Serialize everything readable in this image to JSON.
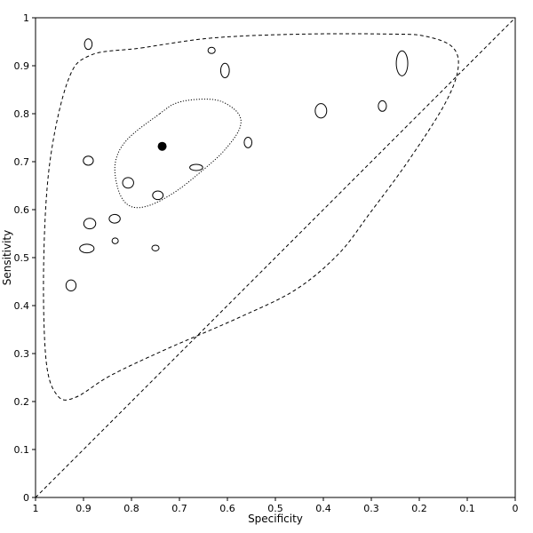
{
  "chart_data": {
    "type": "scatter",
    "title": "",
    "xlabel": "Specificity",
    "ylabel": "Sensitivity",
    "x_reversed": true,
    "xlim": [
      1,
      0
    ],
    "ylim": [
      0,
      1
    ],
    "x_ticks": [
      1,
      0.9,
      0.8,
      0.7,
      0.6,
      0.5,
      0.4,
      0.3,
      0.2,
      0.1,
      0
    ],
    "y_ticks": [
      0,
      0.1,
      0.2,
      0.3,
      0.4,
      0.5,
      0.6,
      0.7,
      0.8,
      0.9,
      1
    ],
    "x_tick_labels": [
      "1",
      "0.9",
      "0.8",
      "0.7",
      "0.6",
      "0.5",
      "0.4",
      "0.3",
      "0.2",
      "0.1",
      "0"
    ],
    "y_tick_labels": [
      "0",
      "0.1",
      "0.2",
      "0.3",
      "0.4",
      "0.5",
      "0.6",
      "0.7",
      "0.8",
      "0.9",
      "1"
    ],
    "grid": false,
    "legend": "none",
    "reference_line": {
      "from": [
        1,
        0
      ],
      "to": [
        0,
        1
      ],
      "style": "dashed"
    },
    "studies": [
      {
        "spec": 0.89,
        "sens": 0.945,
        "rx": 0.008,
        "ry": 0.011
      },
      {
        "spec": 0.633,
        "sens": 0.932,
        "rx": 0.0075,
        "ry": 0.0065
      },
      {
        "spec": 0.605,
        "sens": 0.89,
        "rx": 0.009,
        "ry": 0.015
      },
      {
        "spec": 0.236,
        "sens": 0.905,
        "rx": 0.012,
        "ry": 0.026
      },
      {
        "spec": 0.405,
        "sens": 0.806,
        "rx": 0.012,
        "ry": 0.015
      },
      {
        "spec": 0.277,
        "sens": 0.816,
        "rx": 0.0085,
        "ry": 0.011
      },
      {
        "spec": 0.557,
        "sens": 0.74,
        "rx": 0.008,
        "ry": 0.011
      },
      {
        "spec": 0.89,
        "sens": 0.702,
        "rx": 0.0105,
        "ry": 0.0095
      },
      {
        "spec": 0.665,
        "sens": 0.688,
        "rx": 0.0135,
        "ry": 0.0065
      },
      {
        "spec": 0.807,
        "sens": 0.656,
        "rx": 0.0115,
        "ry": 0.011
      },
      {
        "spec": 0.745,
        "sens": 0.63,
        "rx": 0.011,
        "ry": 0.009
      },
      {
        "spec": 0.835,
        "sens": 0.581,
        "rx": 0.0115,
        "ry": 0.009
      },
      {
        "spec": 0.887,
        "sens": 0.571,
        "rx": 0.0125,
        "ry": 0.011
      },
      {
        "spec": 0.834,
        "sens": 0.535,
        "rx": 0.0065,
        "ry": 0.006
      },
      {
        "spec": 0.893,
        "sens": 0.519,
        "rx": 0.015,
        "ry": 0.009
      },
      {
        "spec": 0.75,
        "sens": 0.52,
        "rx": 0.0075,
        "ry": 0.006
      },
      {
        "spec": 0.926,
        "sens": 0.442,
        "rx": 0.0105,
        "ry": 0.0115
      }
    ],
    "summary_point": {
      "spec": 0.736,
      "sens": 0.732
    },
    "confidence_region": {
      "style": "dotted",
      "points": [
        [
          0.741,
          0.8
        ],
        [
          0.707,
          0.822
        ],
        [
          0.66,
          0.83
        ],
        [
          0.614,
          0.826
        ],
        [
          0.577,
          0.8
        ],
        [
          0.575,
          0.768
        ],
        [
          0.606,
          0.724
        ],
        [
          0.647,
          0.686
        ],
        [
          0.706,
          0.639
        ],
        [
          0.762,
          0.609
        ],
        [
          0.802,
          0.607
        ],
        [
          0.826,
          0.637
        ],
        [
          0.834,
          0.696
        ],
        [
          0.809,
          0.746
        ]
      ]
    },
    "prediction_region": {
      "style": "dashed",
      "points": [
        [
          0.78,
          0.937
        ],
        [
          0.63,
          0.958
        ],
        [
          0.44,
          0.966
        ],
        [
          0.26,
          0.966
        ],
        [
          0.19,
          0.962
        ],
        [
          0.132,
          0.94
        ],
        [
          0.119,
          0.895
        ],
        [
          0.147,
          0.82
        ],
        [
          0.224,
          0.7
        ],
        [
          0.302,
          0.594
        ],
        [
          0.368,
          0.508
        ],
        [
          0.458,
          0.433
        ],
        [
          0.576,
          0.375
        ],
        [
          0.73,
          0.308
        ],
        [
          0.844,
          0.254
        ],
        [
          0.916,
          0.209
        ],
        [
          0.954,
          0.212
        ],
        [
          0.978,
          0.286
        ],
        [
          0.983,
          0.49
        ],
        [
          0.97,
          0.7
        ],
        [
          0.932,
          0.87
        ],
        [
          0.885,
          0.922
        ]
      ]
    }
  }
}
